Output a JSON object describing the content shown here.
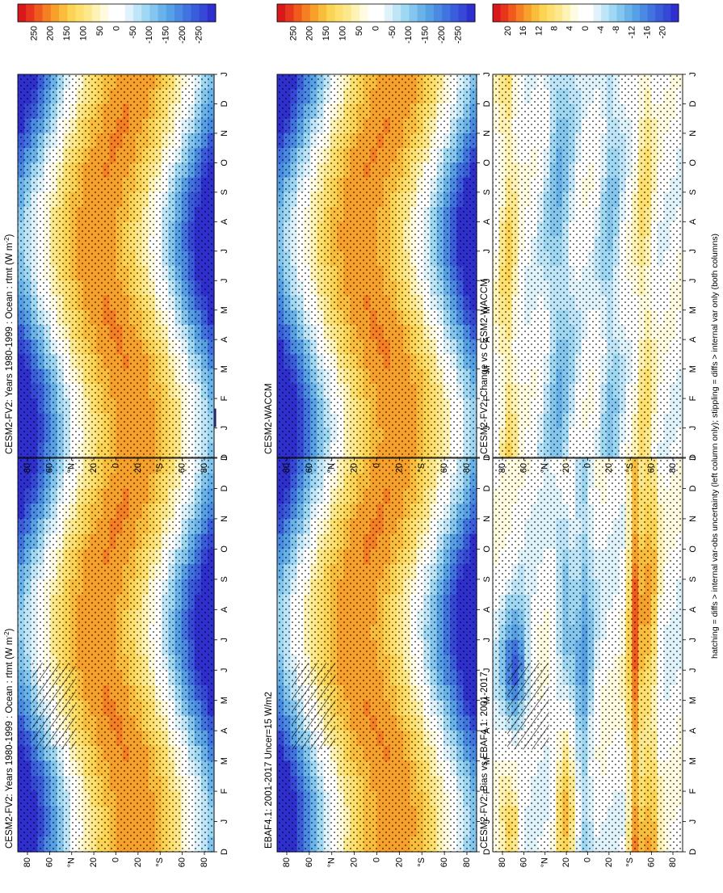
{
  "footer": "hatching = diffs > internal var-obs uncertainty (left column only); stippling = diffs > internal var only (both columns)",
  "panel_titles": [
    "CESM2-FV2: Years 1980-1999 : Ocean : rtmt (W m",
    "EBAF4.1: 2001-2017 Uncer=15 W/m2",
    "CESM2-FV2: Bias vs EBAF4.1: 2001-2017",
    "CESM2-FV2: Years 1980-1999 : Ocean : rtmt (W m",
    "CESM2-WACCM",
    "CESM2-FV2: Change vs CESM2-WACCM"
  ],
  "title_superscript": "-2",
  "title_close": ")",
  "months": [
    "D",
    "J",
    "F",
    "M",
    "A",
    "M",
    "J",
    "J",
    "A",
    "S",
    "O",
    "N",
    "D",
    "J"
  ],
  "lat_labels": [
    "80",
    "60",
    "°N",
    "20",
    "0",
    "20",
    "°S",
    "60",
    "80"
  ],
  "colorbars": {
    "main": {
      "ticks": [
        "250",
        "200",
        "150",
        "100",
        "50",
        "0",
        "-50",
        "-100",
        "-150",
        "-200",
        "-250"
      ],
      "colors": [
        "#d7191c",
        "#e8361d",
        "#f05a1d",
        "#f57f22",
        "#f7a12a",
        "#f9bd3b",
        "#fbd453",
        "#fde06e",
        "#fde98d",
        "#fef3b5",
        "#fffbe0",
        "#ffffff",
        "#ffffff",
        "#e0f3fb",
        "#bfe6f8",
        "#9fd8f3",
        "#84c6ee",
        "#6ab3ea",
        "#56a0e6",
        "#4a8ae3",
        "#4174e0",
        "#3a5ddc",
        "#3548d6",
        "#2f2fcf"
      ]
    },
    "diff": {
      "ticks": [
        "20",
        "16",
        "12",
        "8",
        "4",
        "0",
        "-4",
        "-8",
        "-12",
        "-16",
        "-20"
      ],
      "colors": [
        "#d7191c",
        "#e8361d",
        "#f05a1d",
        "#f57f22",
        "#f7a12a",
        "#f9bd3b",
        "#fbd453",
        "#fde06e",
        "#fde98d",
        "#fef3b5",
        "#fffbe0",
        "#ffffff",
        "#ffffff",
        "#e0f3fb",
        "#bfe6f8",
        "#9fd8f3",
        "#84c6ee",
        "#6ab3ea",
        "#56a0e6",
        "#4a8ae3",
        "#4174e0",
        "#3a5ddc",
        "#3548d6",
        "#2f2fcf"
      ]
    }
  },
  "chart_data": [
    {
      "type": "heatmap",
      "title": "CESM2-FV2: Years 1980-1999 : Ocean : rtmt (W m-2)",
      "x": "month (D–J)",
      "y": "latitude 90N–90S",
      "colorbar": "main",
      "stipple": true,
      "hatch": true,
      "description_values": {
        "range": [
          -250,
          250
        ]
      }
    },
    {
      "type": "heatmap",
      "title": "EBAF4.1: 2001-2017 Uncer=15 W/m2",
      "colorbar": "main",
      "stipple": true,
      "hatch": true,
      "description_values": {
        "range": [
          -250,
          250
        ]
      }
    },
    {
      "type": "heatmap",
      "title": "CESM2-FV2: Bias vs EBAF4.1: 2001-2017",
      "colorbar": "diff",
      "stipple": true,
      "hatch": true,
      "description_values": {
        "range": [
          -20,
          20
        ]
      }
    },
    {
      "type": "heatmap",
      "title": "CESM2-FV2: Years 1980-1999 : Ocean : rtmt (W m-2)",
      "colorbar": "main",
      "stipple": true,
      "hatch": false,
      "description_values": {
        "range": [
          -250,
          250
        ]
      }
    },
    {
      "type": "heatmap",
      "title": "CESM2-WACCM",
      "colorbar": "main",
      "stipple": true,
      "hatch": false,
      "description_values": {
        "range": [
          -250,
          250
        ]
      }
    },
    {
      "type": "heatmap",
      "title": "CESM2-FV2: Change vs CESM2-WACCM",
      "colorbar": "diff",
      "stipple": true,
      "hatch": false,
      "description_values": {
        "range": [
          -20,
          20
        ]
      }
    }
  ]
}
